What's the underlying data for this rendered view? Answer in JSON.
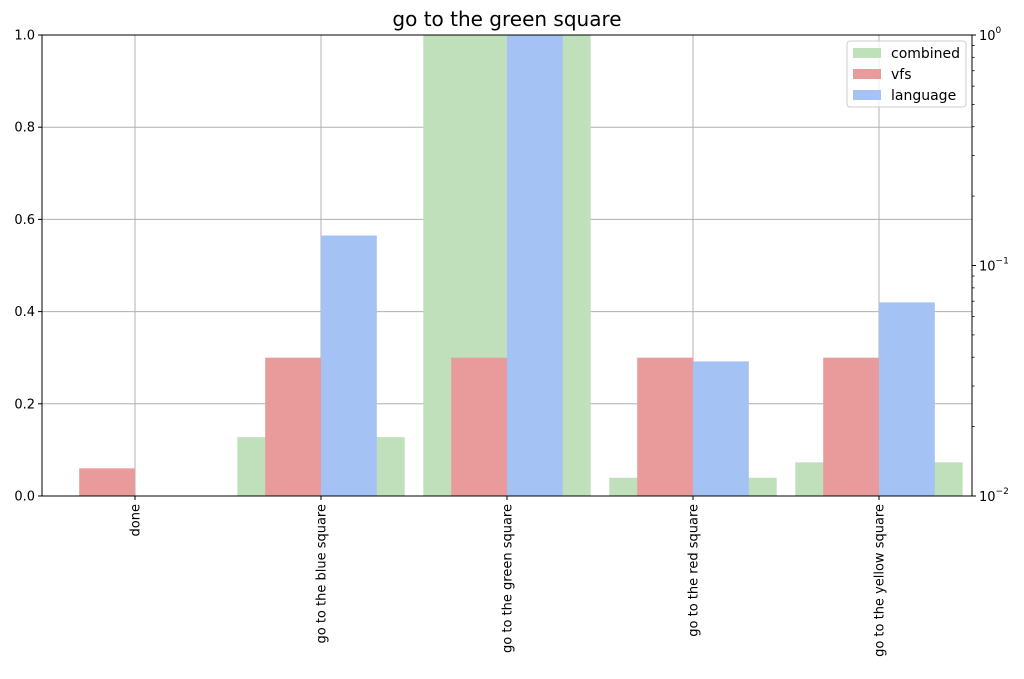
{
  "chart_data": {
    "type": "bar",
    "title": "go to the green square",
    "categories": [
      "done",
      "go to the blue square",
      "go to the green square",
      "go to the red square",
      "go to the yellow square"
    ],
    "series": [
      {
        "name": "combined",
        "axis": "right-log",
        "color": "#c0e0bc",
        "values": [
          0.0,
          0.018,
          1.0,
          0.012,
          0.014
        ]
      },
      {
        "name": "vfs",
        "axis": "left",
        "color": "#e99a9a",
        "values": [
          0.06,
          0.3,
          0.3,
          0.3,
          0.3
        ]
      },
      {
        "name": "language",
        "axis": "left",
        "color": "#a5c2f4",
        "values": [
          0.0,
          0.565,
          1.0,
          0.292,
          0.42
        ]
      }
    ],
    "ylim_left": [
      0,
      1.0
    ],
    "ylim_right_log": [
      0.01,
      1.0
    ],
    "yticks_left": [
      "0.0",
      "0.2",
      "0.4",
      "0.6",
      "0.8",
      "1.0"
    ],
    "yticks_right": [
      "10",
      "10",
      "10"
    ],
    "yticks_right_exp": [
      "−2",
      "−1",
      "0"
    ],
    "grid": true,
    "legend_position": "top-right"
  }
}
